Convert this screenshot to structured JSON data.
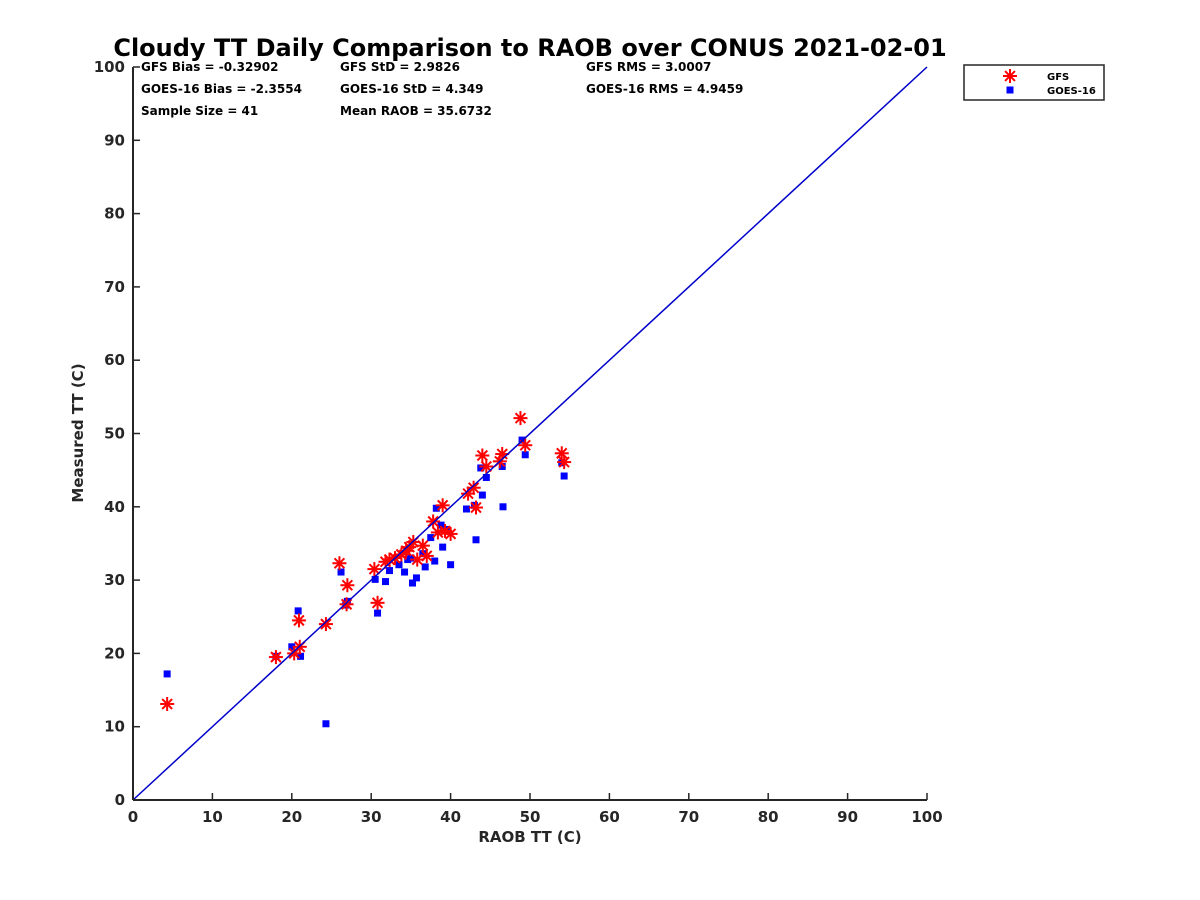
{
  "chart_data": {
    "type": "scatter",
    "title": "Cloudy TT Daily Comparison to RAOB over CONUS 2021-02-01",
    "xlabel": "RAOB TT (C)",
    "ylabel": "Measured TT (C)",
    "xlim": [
      0,
      100
    ],
    "ylim": [
      0,
      100
    ],
    "xticks": [
      "0",
      "10",
      "20",
      "30",
      "40",
      "50",
      "60",
      "70",
      "80",
      "90",
      "100"
    ],
    "yticks": [
      "0",
      "10",
      "20",
      "30",
      "40",
      "50",
      "60",
      "70",
      "80",
      "90",
      "100"
    ],
    "grid": false,
    "legend_position": "outside top-right",
    "stats": [
      [
        "GFS Bias = -0.32902",
        "GFS StD = 2.9826",
        "GFS RMS = 3.0007"
      ],
      [
        "GOES-16 Bias = -2.3554",
        "GOES-16 StD = 4.349",
        "GOES-16 RMS = 4.9459"
      ],
      [
        "Sample Size = 41",
        "Mean RAOB = 35.6732",
        ""
      ]
    ],
    "reference_line": {
      "x": [
        0,
        100
      ],
      "y": [
        0,
        100
      ],
      "color": "#0000cc"
    },
    "series": [
      {
        "name": "GFS",
        "marker": "asterisk",
        "color": "#ff0000",
        "x": [
          4.3,
          18.0,
          20.3,
          21.0,
          20.9,
          24.3,
          26.0,
          27.0,
          26.9,
          30.4,
          30.8,
          31.8,
          32.3,
          33.0,
          33.8,
          34.4,
          34.8,
          35.3,
          35.8,
          36.5,
          37.0,
          37.8,
          38.4,
          39.0,
          39.3,
          40.0,
          42.2,
          42.9,
          43.2,
          44.0,
          44.5,
          46.2,
          46.5,
          48.8,
          49.4,
          54.0,
          54.3
        ],
        "y": [
          13.1,
          19.5,
          20.0,
          20.9,
          24.5,
          24.0,
          32.3,
          29.3,
          26.7,
          31.5,
          26.9,
          32.5,
          32.8,
          33.0,
          33.5,
          34.0,
          34.5,
          35.2,
          32.8,
          34.7,
          33.3,
          38.0,
          36.5,
          40.2,
          36.7,
          36.3,
          41.8,
          42.6,
          39.9,
          47.0,
          45.5,
          46.2,
          47.2,
          52.1,
          48.4,
          47.3,
          46.1
        ]
      },
      {
        "name": "GOES-16",
        "marker": "square",
        "color": "#0000ff",
        "x": [
          4.3,
          18.0,
          20.0,
          20.8,
          21.1,
          24.3,
          26.2,
          26.8,
          27.0,
          30.5,
          30.8,
          31.8,
          32.3,
          33.5,
          34.2,
          34.6,
          35.0,
          35.2,
          35.7,
          36.5,
          36.8,
          37.5,
          38.0,
          38.2,
          38.8,
          39.0,
          39.5,
          40.0,
          42.0,
          43.0,
          43.2,
          43.8,
          44.0,
          44.5,
          46.5,
          46.6,
          49.0,
          49.4,
          54.0,
          54.3
        ],
        "y": [
          17.2,
          19.6,
          20.9,
          25.8,
          19.6,
          10.4,
          31.1,
          26.6,
          27.1,
          30.1,
          25.5,
          29.8,
          31.3,
          32.1,
          31.1,
          32.8,
          33.0,
          29.6,
          30.3,
          33.6,
          31.8,
          35.8,
          32.6,
          39.8,
          37.5,
          34.5,
          36.9,
          32.1,
          39.7,
          40.2,
          35.5,
          45.3,
          41.6,
          44.0,
          45.5,
          40.0,
          49.1,
          47.1,
          46.0,
          44.2
        ]
      }
    ]
  }
}
